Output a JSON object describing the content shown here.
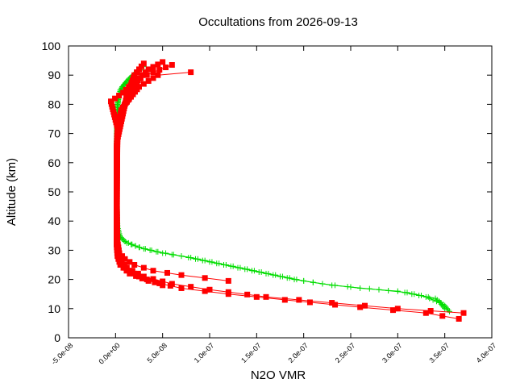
{
  "chart_data": {
    "type": "scatter",
    "title": "Occultations from 2026-09-13",
    "xlabel": "N2O VMR",
    "ylabel": "Altitude (km)",
    "xlim": [
      -5e-08,
      4e-07
    ],
    "ylim": [
      0,
      100
    ],
    "x_ticks": [
      "-5.0e-08",
      "0.0e+00",
      "5.0e-08",
      "1.0e-07",
      "1.5e-07",
      "2.0e-07",
      "2.5e-07",
      "3.0e-07",
      "3.5e-07",
      "4.0e-07"
    ],
    "x_tick_values": [
      -5e-08,
      0,
      5e-08,
      1e-07,
      1.5e-07,
      2e-07,
      2.5e-07,
      3e-07,
      3.5e-07,
      4e-07
    ],
    "y_ticks": [
      "0",
      "10",
      "20",
      "30",
      "40",
      "50",
      "60",
      "70",
      "80",
      "90",
      "100"
    ],
    "y_tick_values": [
      0,
      10,
      20,
      30,
      40,
      50,
      60,
      70,
      80,
      90,
      100
    ],
    "grid": false,
    "series": [
      {
        "color": "#00dd00",
        "marker": "plus",
        "profiles": [
          [
            [
              3.5e-07,
              10
            ],
            [
              3.45e-07,
              12
            ],
            [
              3.3e-07,
              14
            ],
            [
              3e-07,
              16
            ],
            [
              2.6e-07,
              17
            ],
            [
              2.2e-07,
              18.5
            ],
            [
              1.9e-07,
              20
            ],
            [
              1.6e-07,
              22
            ],
            [
              1.3e-07,
              24
            ],
            [
              1e-07,
              26
            ],
            [
              7e-08,
              28
            ],
            [
              4.5e-08,
              29.5
            ],
            [
              2.5e-08,
              31
            ],
            [
              1e-08,
              33
            ],
            [
              4e-09,
              35
            ],
            [
              2e-09,
              38
            ],
            [
              1.5e-09,
              45
            ],
            [
              1e-09,
              55
            ],
            [
              1e-09,
              65
            ],
            [
              1.5e-09,
              75
            ],
            [
              3e-09,
              82
            ],
            [
              7e-09,
              86
            ],
            [
              1.5e-08,
              89
            ],
            [
              3e-08,
              93
            ]
          ],
          [
            [
              3.55e-07,
              9
            ],
            [
              3.5e-07,
              11
            ],
            [
              3.4e-07,
              13.5
            ],
            [
              3.1e-07,
              15.5
            ],
            [
              2.7e-07,
              16.8
            ],
            [
              2.3e-07,
              18
            ],
            [
              2e-07,
              19.5
            ],
            [
              1.7e-07,
              21.5
            ],
            [
              1.4e-07,
              23.5
            ],
            [
              1.1e-07,
              25.5
            ],
            [
              8e-08,
              27.5
            ],
            [
              5e-08,
              29
            ],
            [
              3e-08,
              30.5
            ],
            [
              1.2e-08,
              32.5
            ],
            [
              5e-09,
              34.5
            ],
            [
              2e-09,
              38
            ],
            [
              1e-09,
              48
            ],
            [
              1e-09,
              60
            ],
            [
              1.5e-09,
              72
            ],
            [
              2e-09,
              80
            ],
            [
              5e-09,
              85
            ],
            [
              1.2e-08,
              88
            ],
            [
              2.2e-08,
              91
            ]
          ]
        ]
      },
      {
        "color": "#ff0000",
        "marker": "square",
        "profiles": [
          [
            [
              3.65e-07,
              6.5
            ],
            [
              3.3e-07,
              8.5
            ],
            [
              2.6e-07,
              10.5
            ],
            [
              1.8e-07,
              13
            ],
            [
              1.2e-07,
              15
            ],
            [
              7e-08,
              17
            ],
            [
              3.5e-08,
              19.5
            ],
            [
              1.5e-08,
              22
            ],
            [
              5e-09,
              25
            ],
            [
              2e-09,
              28
            ],
            [
              1e-09,
              32
            ],
            [
              1e-09,
              40
            ],
            [
              1e-09,
              50
            ],
            [
              1e-09,
              60
            ],
            [
              1.5e-09,
              68
            ],
            [
              3e-09,
              75
            ],
            [
              1e-08,
              80
            ],
            [
              2.5e-08,
              86
            ],
            [
              4.5e-08,
              90
            ],
            [
              8e-08,
              91
            ]
          ],
          [
            [
              3.7e-07,
              8.5
            ],
            [
              3e-07,
              10
            ],
            [
              2.3e-07,
              12
            ],
            [
              1.6e-07,
              14
            ],
            [
              1e-07,
              16.5
            ],
            [
              6e-08,
              18.5
            ],
            [
              3e-08,
              21
            ],
            [
              1.2e-08,
              24
            ],
            [
              4e-09,
              27
            ],
            [
              2e-09,
              30
            ],
            [
              1e-09,
              38
            ],
            [
              1e-09,
              55
            ],
            [
              1e-09,
              65
            ],
            [
              2e-09,
              72
            ],
            [
              -5e-09,
              81
            ],
            [
              8e-09,
              84
            ],
            [
              2e-08,
              88
            ],
            [
              4e-08,
              91
            ],
            [
              6e-08,
              93.5
            ]
          ],
          [
            [
              1.2e-07,
              19.5
            ],
            [
              7e-08,
              21.5
            ],
            [
              4e-08,
              23
            ],
            [
              2e-08,
              25
            ],
            [
              1e-08,
              27
            ],
            [
              4e-09,
              29
            ],
            [
              2e-09,
              33
            ],
            [
              1.5e-09,
              45
            ],
            [
              2e-09,
              70
            ],
            [
              6e-09,
              78
            ],
            [
              1.8e-08,
              84
            ],
            [
              2.5e-08,
              89
            ],
            [
              3.5e-08,
              92
            ],
            [
              5e-08,
              94.5
            ]
          ],
          [
            [
              5e-08,
              18
            ],
            [
              2.5e-08,
              21
            ],
            [
              1e-08,
              24
            ],
            [
              3e-09,
              28
            ],
            [
              1e-09,
              35
            ],
            [
              1e-09,
              50
            ],
            [
              2e-09,
              68
            ],
            [
              1.2e-08,
              83
            ],
            [
              2e-08,
              90
            ],
            [
              3e-08,
              94
            ]
          ]
        ]
      }
    ]
  }
}
